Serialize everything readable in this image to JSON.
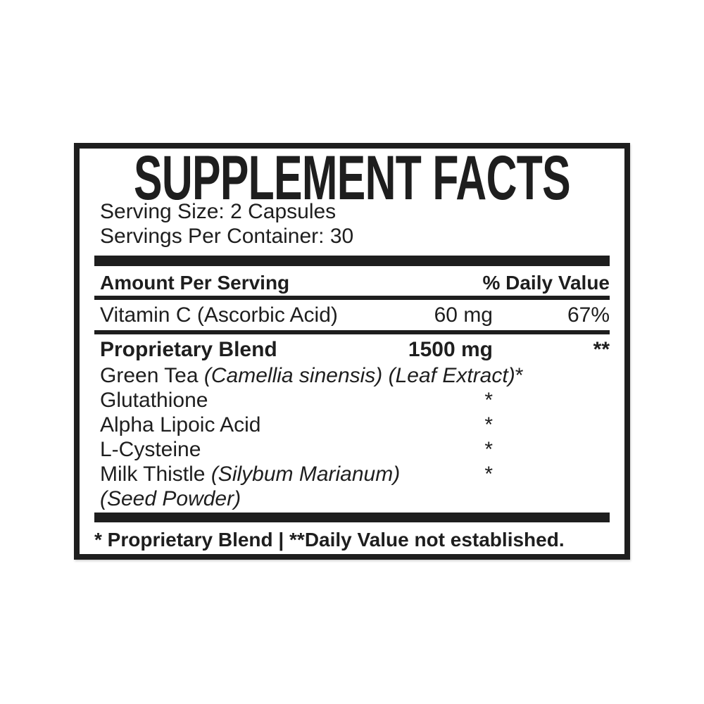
{
  "label": {
    "title": "SUPPLEMENT FACTS",
    "serving_size": "Serving Size: 2 Capsules",
    "servings_per_container": "Servings Per Container: 30",
    "header": {
      "amount_per_serving": "Amount Per Serving",
      "daily_value": "% Daily Value"
    },
    "rows": [
      {
        "name": "Vitamin C (Ascorbic Acid)",
        "amount": "60 mg",
        "dv": "67%"
      },
      {
        "name": "Proprietary Blend",
        "amount": "1500 mg",
        "dv": "**"
      },
      {
        "name": "Green Tea ",
        "name_italic": "(Camellia sinensis) (Leaf Extract)",
        "amount": "*",
        "dv": ""
      },
      {
        "name": "Glutathione",
        "amount": "*",
        "dv": ""
      },
      {
        "name": "Alpha Lipoic Acid",
        "amount": "*",
        "dv": ""
      },
      {
        "name": "L-Cysteine",
        "amount": "*",
        "dv": ""
      },
      {
        "name": "Milk Thistle ",
        "name_italic": "(Silybum Marianum)",
        "amount": "*",
        "dv": ""
      },
      {
        "name_italic": "(Seed Powder)"
      }
    ],
    "footnote": "* Proprietary Blend | **Daily Value not established."
  },
  "colors": {
    "ink": "#1e1e1e",
    "background": "#ffffff"
  }
}
